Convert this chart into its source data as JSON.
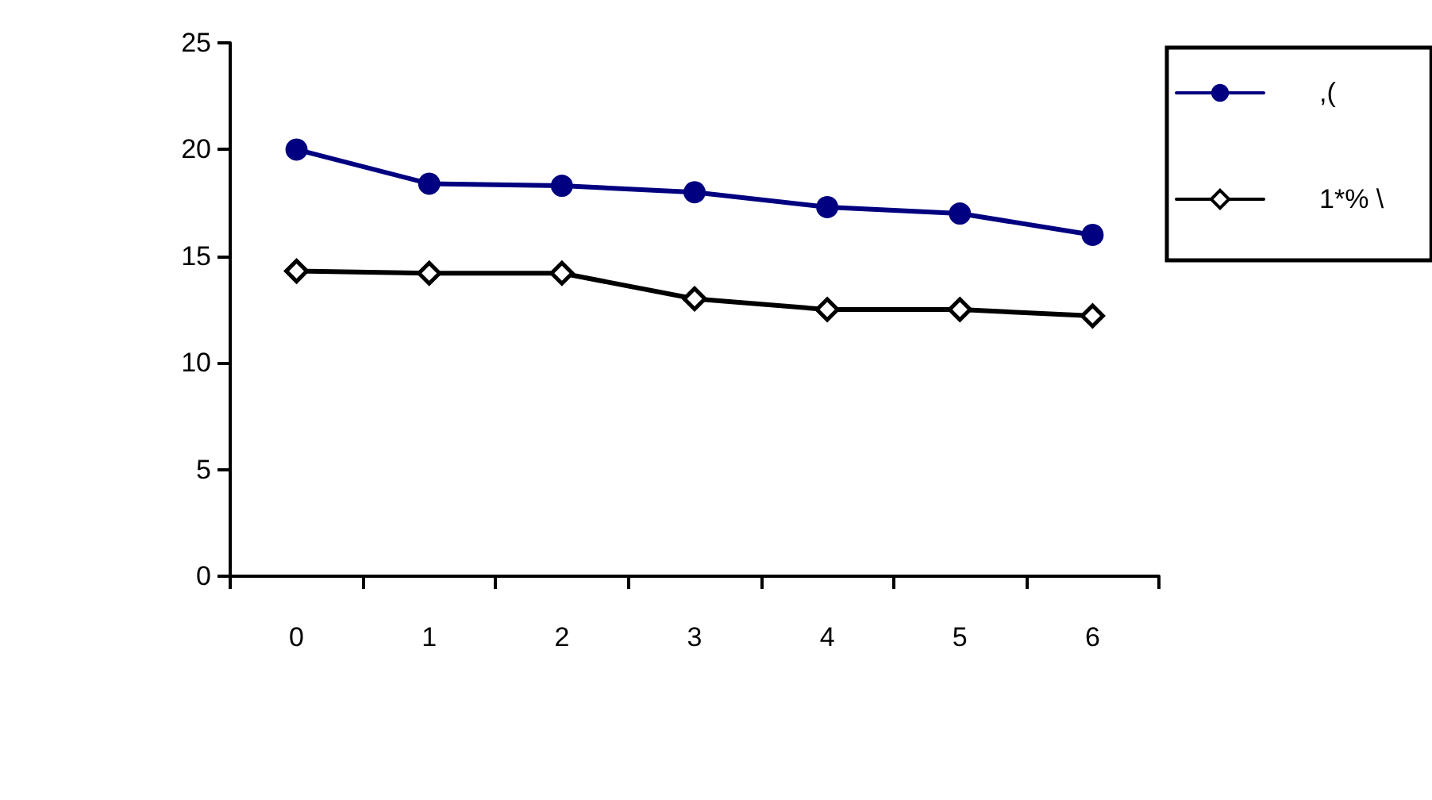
{
  "chart_data": {
    "type": "line",
    "categories": [
      "0",
      "1",
      "2",
      "3",
      "4",
      "5",
      "6"
    ],
    "series": [
      {
        "name": ",(",
        "color": "#000080",
        "marker": "circle",
        "values": [
          20.0,
          18.4,
          18.3,
          18.0,
          17.3,
          17.0,
          16.0
        ]
      },
      {
        "name": "1*% \\",
        "color": "#000000",
        "marker": "diamond",
        "values": [
          14.3,
          14.2,
          14.2,
          13.0,
          12.5,
          12.5,
          12.2
        ]
      }
    ],
    "ylim": [
      0,
      25
    ],
    "yticks": [
      0,
      5,
      10,
      15,
      20,
      25
    ],
    "grid": false,
    "legend": "right",
    "line_style": "solid"
  }
}
